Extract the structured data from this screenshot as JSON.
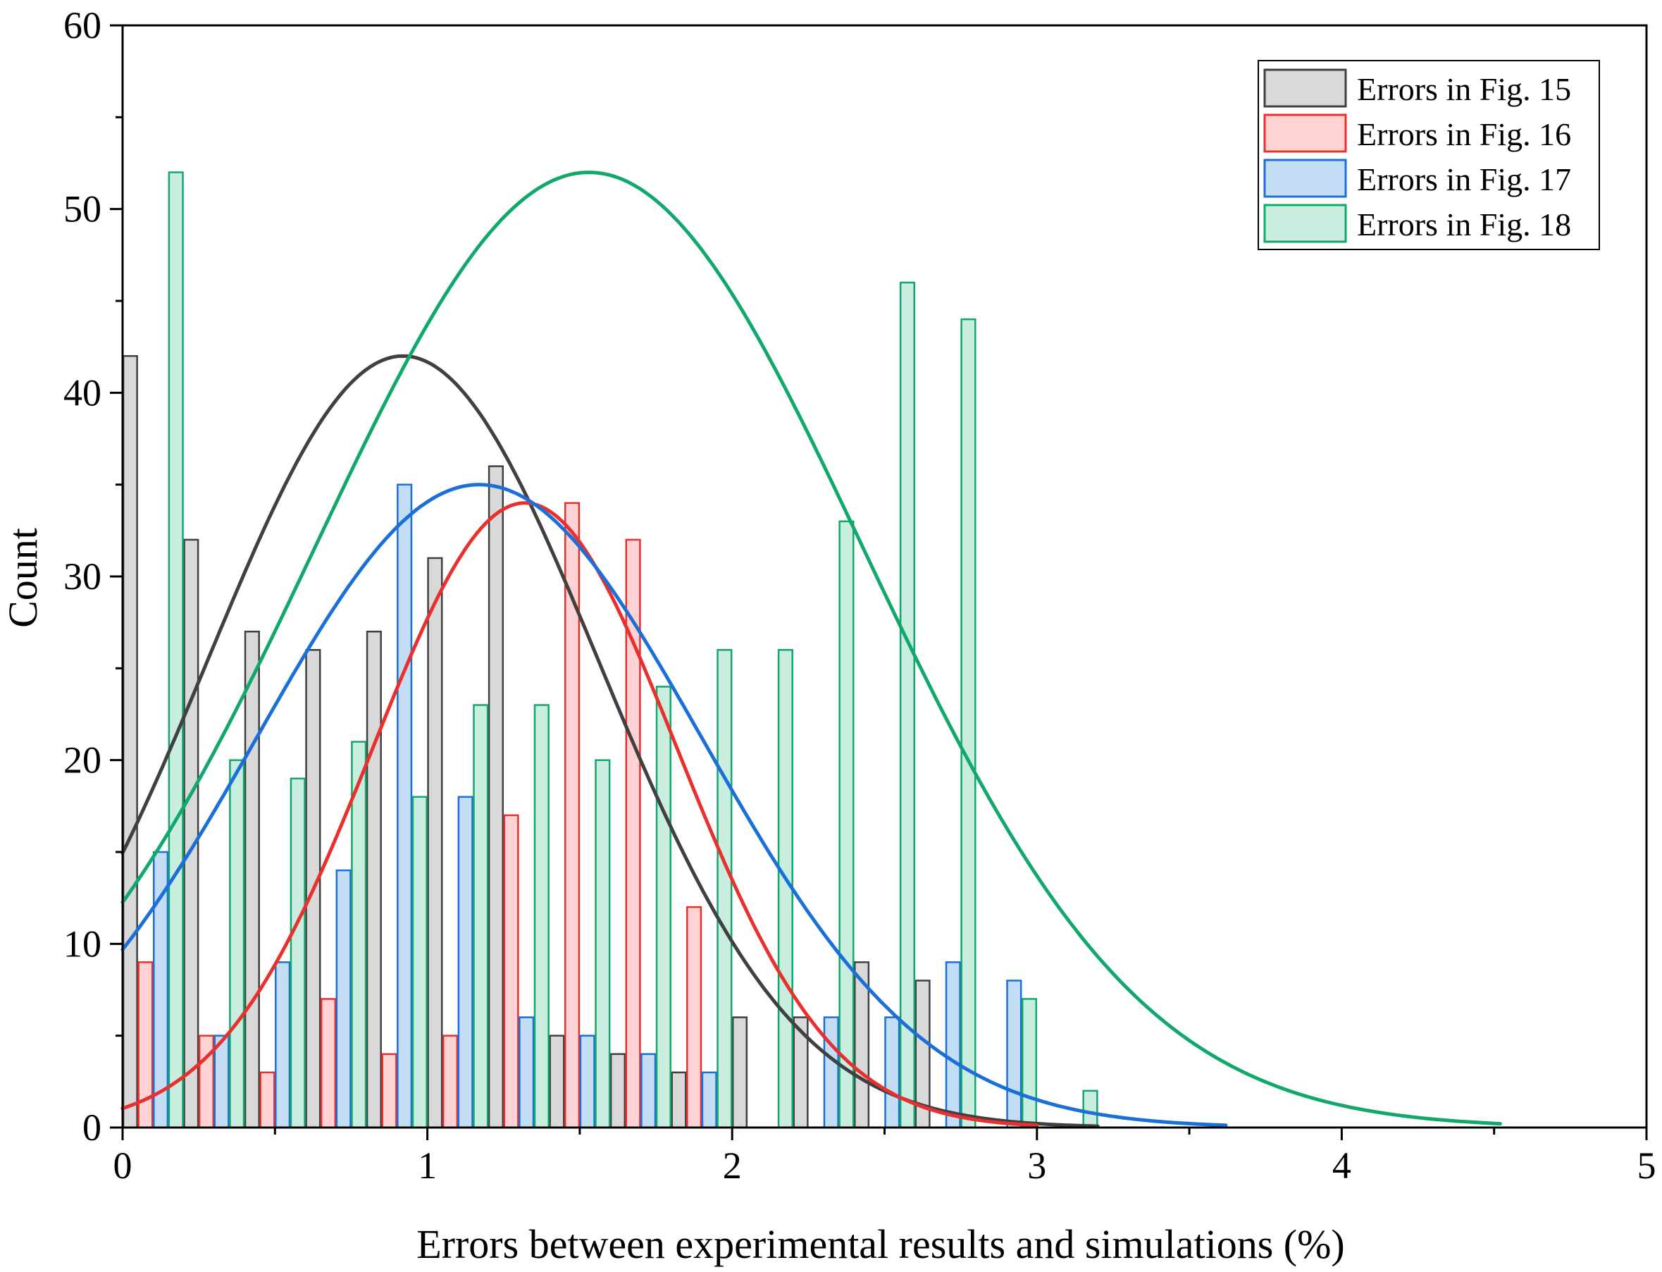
{
  "chart_data": {
    "type": "bar",
    "subtype": "histogram-with-normal-fit",
    "xlabel": "Errors between experimental results and simulations (%)",
    "ylabel": "Count",
    "xlim": [
      0,
      5
    ],
    "ylim": [
      0,
      60
    ],
    "xticks": [
      "0",
      "1",
      "2",
      "3",
      "4",
      "5"
    ],
    "yticks": [
      "0",
      "10",
      "20",
      "30",
      "40",
      "50",
      "60"
    ],
    "legend_position": "top-right",
    "bin_width": 0.2,
    "series": [
      {
        "name": "Errors in Fig. 15",
        "color": "#404040",
        "fill": "#d9d9d9",
        "bin_start": 0.0,
        "values": [
          42,
          32,
          27,
          26,
          27,
          31,
          36,
          5,
          4,
          3,
          6,
          6,
          9,
          8
        ],
        "fit": {
          "mean": 0.92,
          "sd": 0.64,
          "peak": 42,
          "x_range": [
            0,
            3.2
          ]
        }
      },
      {
        "name": "Errors in Fig. 16",
        "color": "#e8312f",
        "fill": "#ffd3d3",
        "bin_start": 0.05,
        "values": [
          9,
          5,
          3,
          7,
          4,
          5,
          17,
          34,
          32,
          12
        ],
        "fit": {
          "mean": 1.32,
          "sd": 0.5,
          "peak": 34,
          "x_range": [
            0,
            3.0
          ]
        }
      },
      {
        "name": "Errors in Fig. 17",
        "color": "#1a6fd8",
        "fill": "#c3ddf5",
        "bin_start": 0.1,
        "values": [
          15,
          5,
          9,
          14,
          35,
          18,
          6,
          5,
          4,
          3,
          0,
          6,
          6,
          9,
          8
        ],
        "fit": {
          "mean": 1.17,
          "sd": 0.73,
          "peak": 35,
          "x_range": [
            0,
            3.62
          ]
        }
      },
      {
        "name": "Errors in Fig. 18",
        "color": "#12a86b",
        "fill": "#c9eedf",
        "bin_start": 0.15,
        "values": [
          52,
          20,
          19,
          21,
          18,
          23,
          23,
          20,
          24,
          26,
          26,
          33,
          46,
          44,
          7,
          2
        ],
        "fit": {
          "mean": 1.53,
          "sd": 0.9,
          "peak": 52,
          "x_range": [
            0,
            4.52
          ]
        }
      }
    ]
  }
}
